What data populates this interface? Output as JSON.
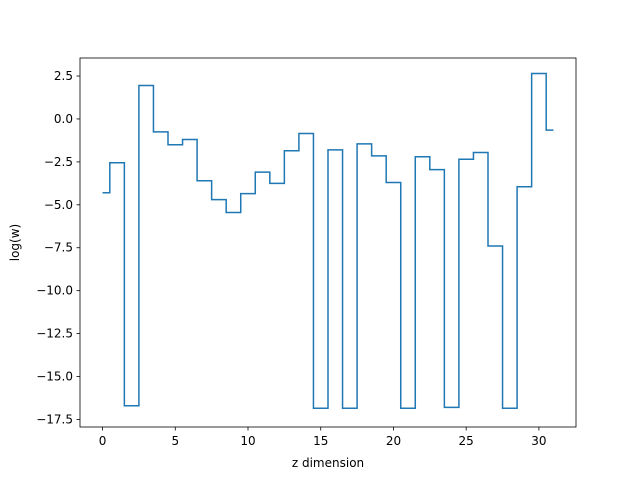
{
  "chart_data": {
    "type": "line",
    "drawstyle": "steps-mid",
    "title": "",
    "xlabel": "z dimension",
    "ylabel": "log(w)",
    "xlim": [
      -1.55,
      32.55
    ],
    "ylim": [
      -17.94,
      3.55
    ],
    "xticks": [
      0,
      5,
      10,
      15,
      20,
      25,
      30
    ],
    "xtick_labels": [
      "0",
      "5",
      "10",
      "15",
      "20",
      "25",
      "30"
    ],
    "yticks": [
      2.5,
      0.0,
      -2.5,
      -5.0,
      -7.5,
      -10.0,
      -12.5,
      -15.0,
      -17.5
    ],
    "ytick_labels": [
      "2.5",
      "0.0",
      "−2.5",
      "−5.0",
      "−7.5",
      "−10.0",
      "−12.5",
      "−15.0",
      "−17.5"
    ],
    "grid": false,
    "legend": false,
    "series": [
      {
        "color": "#1f77b4",
        "x": [
          0,
          1,
          2,
          3,
          4,
          5,
          6,
          7,
          8,
          9,
          10,
          11,
          12,
          13,
          14,
          15,
          16,
          17,
          18,
          19,
          20,
          21,
          22,
          23,
          24,
          25,
          26,
          27,
          28,
          29,
          30,
          31
        ],
        "values": [
          -4.3,
          -2.55,
          -16.7,
          1.95,
          -0.75,
          -1.5,
          -1.2,
          -3.6,
          -4.7,
          -5.45,
          -4.35,
          -3.1,
          -3.75,
          -1.85,
          -0.85,
          -16.85,
          -1.8,
          -16.85,
          -1.45,
          -2.15,
          -3.7,
          -16.85,
          -2.2,
          -2.95,
          -16.8,
          -2.35,
          -1.95,
          -7.4,
          -16.85,
          -3.95,
          2.65,
          -0.65
        ]
      }
    ]
  }
}
